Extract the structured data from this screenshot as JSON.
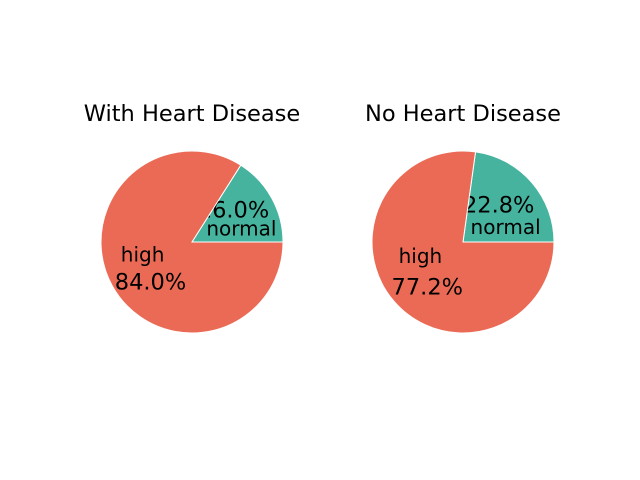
{
  "chart_data": [
    {
      "type": "pie",
      "title": "With Heart Disease",
      "slices": [
        {
          "label": "normal",
          "value": 16.0,
          "percent_label": "16.0%",
          "color": "#45b39d"
        },
        {
          "label": "high",
          "value": 84.0,
          "percent_label": "84.0%",
          "color": "#eb6a55"
        }
      ]
    },
    {
      "type": "pie",
      "title": "No Heart Disease",
      "slices": [
        {
          "label": "normal",
          "value": 22.8,
          "percent_label": "22.8%",
          "color": "#45b39d"
        },
        {
          "label": "high",
          "value": 77.2,
          "percent_label": "77.2%",
          "color": "#eb6a55"
        }
      ]
    }
  ]
}
